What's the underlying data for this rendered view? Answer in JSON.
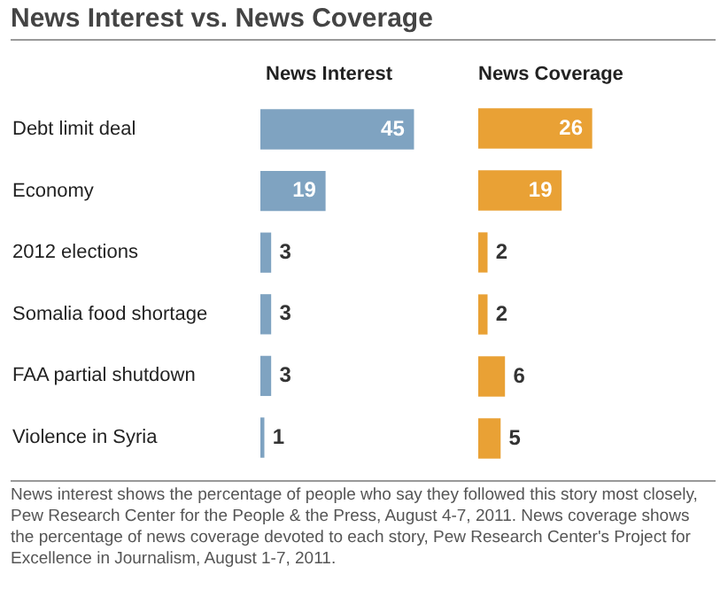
{
  "chart_data": [
    {
      "type": "bar",
      "orientation": "horizontal",
      "title": "News Interest vs. News Coverage",
      "categories": [
        "Debt limit deal",
        "Economy",
        "2012 elections",
        "Somalia food shortage",
        "FAA partial shutdown",
        "Violence in Syria"
      ],
      "series": [
        {
          "name": "News Interest",
          "color": "#7fa3c1",
          "values": [
            45,
            19,
            3,
            3,
            3,
            1
          ]
        }
      ],
      "data_labels": true,
      "annotations": [
        "News interest shows the percentage of people who say they followed this story most closely, Pew Research Center for the People & the Press, August 4-7, 2011. News coverage shows the percentage of news coverage devoted to each story, Pew Research Center's Project for Excellence in Journalism, August 1-7, 2011."
      ]
    },
    {
      "type": "bar",
      "orientation": "horizontal",
      "categories": [
        null,
        null,
        null,
        null,
        null,
        null
      ],
      "series": [
        {
          "name": "News Coverage",
          "color": "#e9a135",
          "values": [
            26,
            19,
            2,
            2,
            6,
            5
          ]
        }
      ],
      "data_labels": true,
      "tick_labels": false
    }
  ]
}
